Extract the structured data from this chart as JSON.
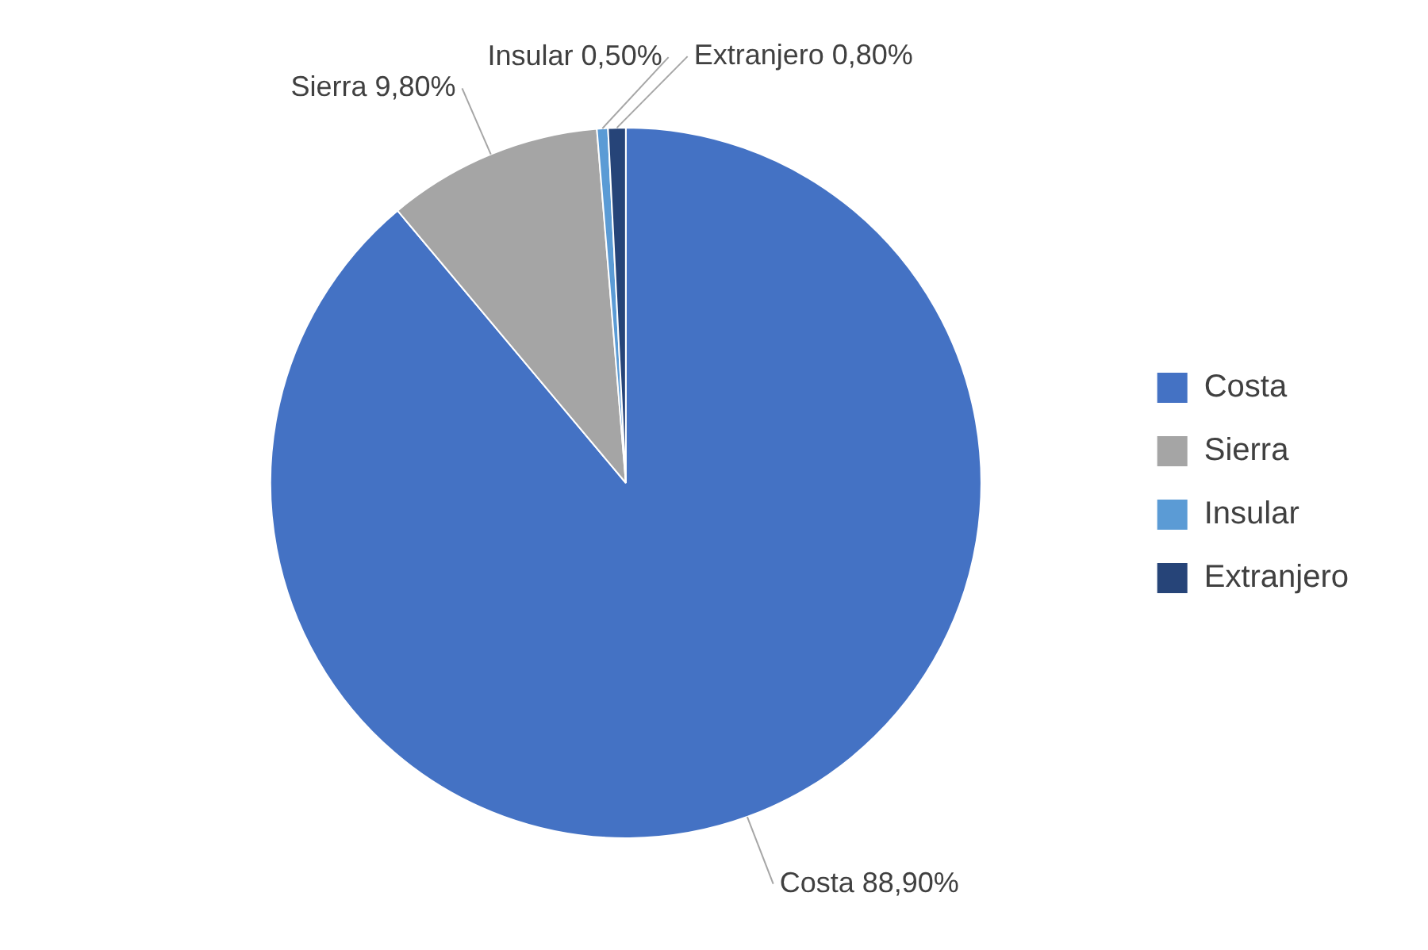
{
  "chart_data": {
    "type": "pie",
    "categories": [
      "Costa",
      "Sierra",
      "Insular",
      "Extranjero"
    ],
    "values": [
      88.9,
      9.8,
      0.5,
      0.8
    ],
    "colors": [
      "#4472c4",
      "#a5a5a5",
      "#5b9bd5",
      "#264478"
    ],
    "value_labels": [
      "Costa 88,90%",
      "Sierra 9,80%",
      "Insular 0,50%",
      "Extranjero 0,80%"
    ],
    "legend": "right"
  }
}
